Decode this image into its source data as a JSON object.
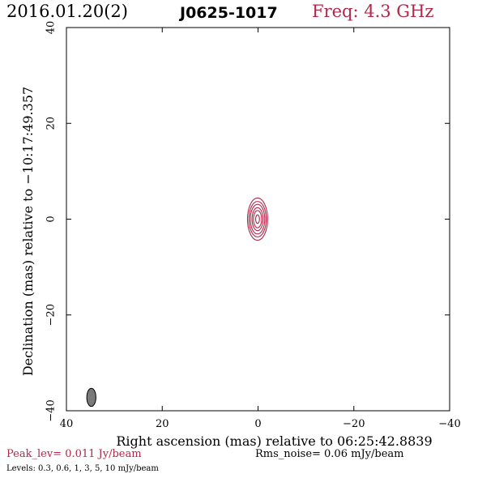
{
  "header": {
    "date": "2016.01.20(2)",
    "source": "J0625-1017",
    "freq": "Freq: 4.3 GHz"
  },
  "footer": {
    "peak": "Peak_lev=  0.011 Jy/beam",
    "rms": "Rms_noise= 0.06 mJy/beam",
    "levels": "Levels: 0.3, 0.6,    1,    3,    5,   10 mJy/beam"
  },
  "colors": {
    "contour": "#b0284a",
    "beam_fill": "#7a7a7a"
  },
  "chart_data": {
    "type": "contour",
    "title": "J0625-1017",
    "xlabel": "Right ascension (mas) relative to 06:25:42.8839",
    "ylabel": "Declination (mas) relative to −10:17:49.357",
    "xlim": [
      40,
      -40
    ],
    "ylim": [
      -40,
      40
    ],
    "x_ticks": [
      40,
      20,
      0,
      -20,
      -40
    ],
    "y_ticks": [
      -40,
      -20,
      0,
      20,
      40
    ],
    "x_tick_labels": [
      "40",
      "20",
      "0",
      "−20",
      "−40"
    ],
    "y_tick_labels": [
      "−40",
      "−20",
      "0",
      "20",
      "40"
    ],
    "levels_mJy": [
      0.3,
      0.6,
      1,
      3,
      5,
      10
    ],
    "peak_Jy_per_beam": 0.011,
    "rms_noise_mJy_per_beam": 0.06,
    "contours": [
      {
        "level": 0.3,
        "center": [
          0.1,
          0.0
        ],
        "semi_major": 4.4,
        "semi_minor": 2.1
      },
      {
        "level": 0.6,
        "center": [
          0.1,
          0.0
        ],
        "semi_major": 3.7,
        "semi_minor": 1.8
      },
      {
        "level": 1,
        "center": [
          0.1,
          0.0
        ],
        "semi_major": 3.1,
        "semi_minor": 1.5
      },
      {
        "level": 3,
        "center": [
          0.1,
          0.0
        ],
        "semi_major": 2.4,
        "semi_minor": 1.15
      },
      {
        "level": 5,
        "center": [
          0.1,
          0.0
        ],
        "semi_major": 1.8,
        "semi_minor": 0.85
      },
      {
        "level": 10,
        "center": [
          0.1,
          0.0
        ],
        "semi_major": 0.9,
        "semi_minor": 0.4
      }
    ],
    "beam": {
      "center": [
        34.8,
        -37.2
      ],
      "semi_major": 1.9,
      "semi_minor": 0.95
    }
  }
}
